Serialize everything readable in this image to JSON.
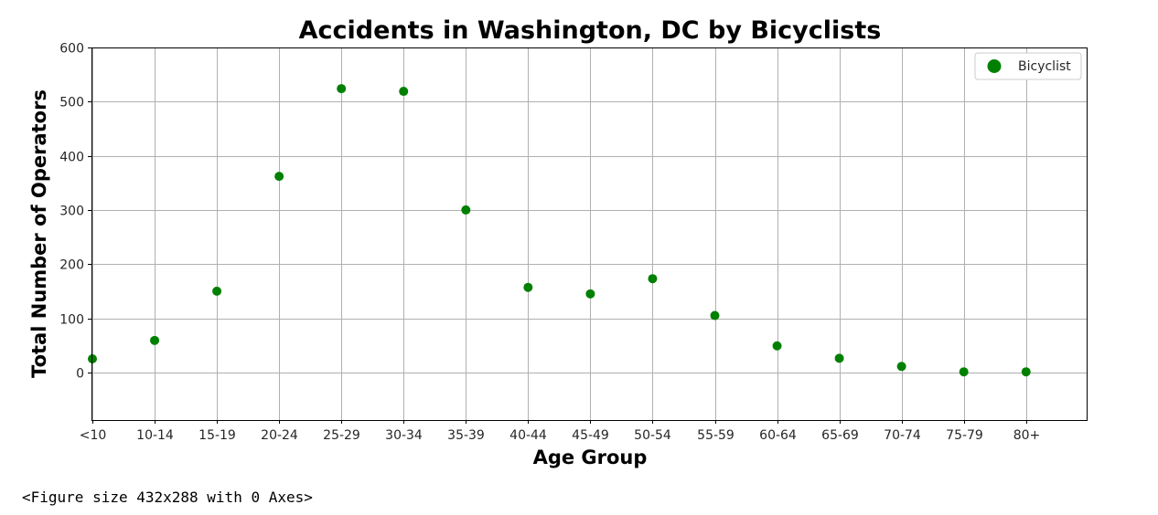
{
  "chart_data": {
    "type": "scatter",
    "title": "Accidents in Washington, DC by Bicyclists",
    "xlabel": "Age Group",
    "ylabel": "Total Number of Operators",
    "categories": [
      "<10",
      "10-14",
      "15-19",
      "20-24",
      "25-29",
      "30-34",
      "35-39",
      "40-44",
      "45-49",
      "50-54",
      "55-59",
      "60-64",
      "65-69",
      "70-74",
      "75-79",
      "80+"
    ],
    "series": [
      {
        "name": "Bicyclist",
        "color": "#008000",
        "values": [
          25,
          59,
          150,
          362,
          524,
          519,
          300,
          157,
          145,
          173,
          105,
          49,
          26,
          11,
          1,
          1
        ]
      }
    ],
    "ylim": [
      -88,
      600
    ],
    "yticks": [
      0,
      100,
      200,
      300,
      400,
      500,
      600
    ],
    "grid": true,
    "legend_position": "upper-right"
  },
  "output_text": "<Figure size 432x288 with 0 Axes>"
}
